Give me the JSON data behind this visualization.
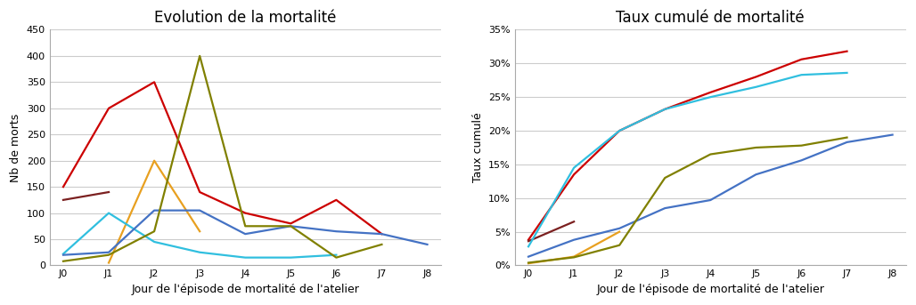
{
  "chart1_title": "Evolution de la mortalité",
  "chart2_title": "Taux cumulé de mortalité",
  "xlabel": "Jour de l'épisode de mortalité de l'atelier",
  "ylabel1": "Nb de morts",
  "ylabel2": "Taux cumulé",
  "x_labels": [
    "J0",
    "J1",
    "J2",
    "J3",
    "J4",
    "J5",
    "J6",
    "J7",
    "J8"
  ],
  "ylim1": [
    0,
    450
  ],
  "ylim2": [
    0,
    0.35
  ],
  "yticks1": [
    0,
    50,
    100,
    150,
    200,
    250,
    300,
    350,
    400,
    450
  ],
  "yticks2": [
    0.0,
    0.05,
    0.1,
    0.15,
    0.2,
    0.25,
    0.3,
    0.35
  ],
  "lines1": [
    {
      "color": "#CC0000",
      "x": [
        0,
        1,
        2,
        3,
        4,
        5,
        6,
        7
      ],
      "y": [
        150,
        300,
        350,
        140,
        100,
        80,
        125,
        60
      ]
    },
    {
      "color": "#7B2020",
      "x": [
        0,
        1
      ],
      "y": [
        125,
        140
      ]
    },
    {
      "color": "#E8A020",
      "x": [
        1,
        2,
        3
      ],
      "y": [
        5,
        200,
        65
      ]
    },
    {
      "color": "#30BFDF",
      "x": [
        0,
        1,
        2,
        3,
        4,
        5,
        6
      ],
      "y": [
        22,
        100,
        45,
        25,
        15,
        15,
        20
      ]
    },
    {
      "color": "#4472C4",
      "x": [
        0,
        1,
        2,
        3,
        4,
        5,
        6,
        7,
        8
      ],
      "y": [
        20,
        25,
        105,
        105,
        60,
        75,
        65,
        60,
        40
      ]
    },
    {
      "color": "#808000",
      "x": [
        0,
        1,
        2,
        3,
        4,
        5,
        6,
        7
      ],
      "y": [
        8,
        20,
        65,
        400,
        75,
        75,
        15,
        40
      ]
    }
  ],
  "lines2": [
    {
      "color": "#CC0000",
      "x": [
        0,
        1,
        2,
        3,
        4,
        5,
        6,
        7
      ],
      "y": [
        0.038,
        0.135,
        0.2,
        0.232,
        0.257,
        0.28,
        0.306,
        0.318
      ]
    },
    {
      "color": "#7B2020",
      "x": [
        0,
        1
      ],
      "y": [
        0.036,
        0.065
      ]
    },
    {
      "color": "#E8A020",
      "x": [
        0,
        1,
        2
      ],
      "y": [
        0.003,
        0.013,
        0.05
      ]
    },
    {
      "color": "#30BFDF",
      "x": [
        0,
        1,
        2,
        3,
        4,
        5,
        6,
        7
      ],
      "y": [
        0.028,
        0.145,
        0.2,
        0.232,
        0.25,
        0.265,
        0.283,
        0.286
      ]
    },
    {
      "color": "#4472C4",
      "x": [
        0,
        1,
        2,
        3,
        4,
        5,
        6,
        7,
        8
      ],
      "y": [
        0.013,
        0.038,
        0.055,
        0.085,
        0.097,
        0.135,
        0.156,
        0.183,
        0.194
      ]
    },
    {
      "color": "#808000",
      "x": [
        0,
        1,
        2,
        3,
        4,
        5,
        6,
        7
      ],
      "y": [
        0.004,
        0.012,
        0.03,
        0.13,
        0.165,
        0.175,
        0.178,
        0.19
      ]
    }
  ],
  "bg_color": "#FFFFFF",
  "grid_color": "#CCCCCC",
  "title_fontsize": 12,
  "label_fontsize": 9,
  "tick_fontsize": 8,
  "line_width": 1.6
}
